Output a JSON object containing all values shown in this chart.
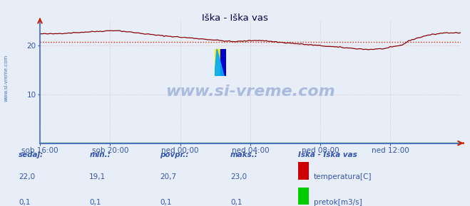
{
  "title": "Iška - Iška vas",
  "fig_bg_color": "#e8eef8",
  "plot_bg_color": "#e8eef8",
  "footer_bg_color": "#ffffff",
  "grid_color": "#ddbbbb",
  "grid_linestyle": ":",
  "spine_color": "#4466cc",
  "arrow_color": "#cc2200",
  "avg_line_color": "#dd2200",
  "avg_line_style": ":",
  "temp_color": "#880000",
  "flow_color": "#008800",
  "watermark_text": "www.si-vreme.com",
  "watermark_color": "#aabbdd",
  "sidebar_text": "www.si-vreme.com",
  "sidebar_color": "#4477bb",
  "title_color": "#000044",
  "label_color": "#3355aa",
  "x_labels": [
    "sob 16:00",
    "sob 20:00",
    "ned 00:00",
    "ned 04:00",
    "ned 08:00",
    "ned 12:00"
  ],
  "x_ticks_norm": [
    0.0,
    0.1667,
    0.3333,
    0.5,
    0.6667,
    0.8333
  ],
  "ylim": [
    0,
    25
  ],
  "yticks": [
    10,
    20
  ],
  "avg_line_y": 20.7,
  "sedaj_label": "sedaj:",
  "min_label": "min.:",
  "povpr_label": "povpr.:",
  "maks_label": "maks.:",
  "station_label": "Iška - Iška vas",
  "temp_label": "temperatura[C]",
  "flow_label": "pretok[m3/s]",
  "sedaj_temp": "22,0",
  "min_temp": "19,1",
  "povpr_temp": "20,7",
  "maks_temp": "23,0",
  "sedaj_flow": "0,1",
  "min_flow": "0,1",
  "povpr_flow": "0,1",
  "maks_flow": "0,1",
  "temp_legend_color": "#cc0000",
  "flow_legend_color": "#00cc00",
  "footer_label_color": "#3355aa",
  "footer_value_color": "#3355aa"
}
